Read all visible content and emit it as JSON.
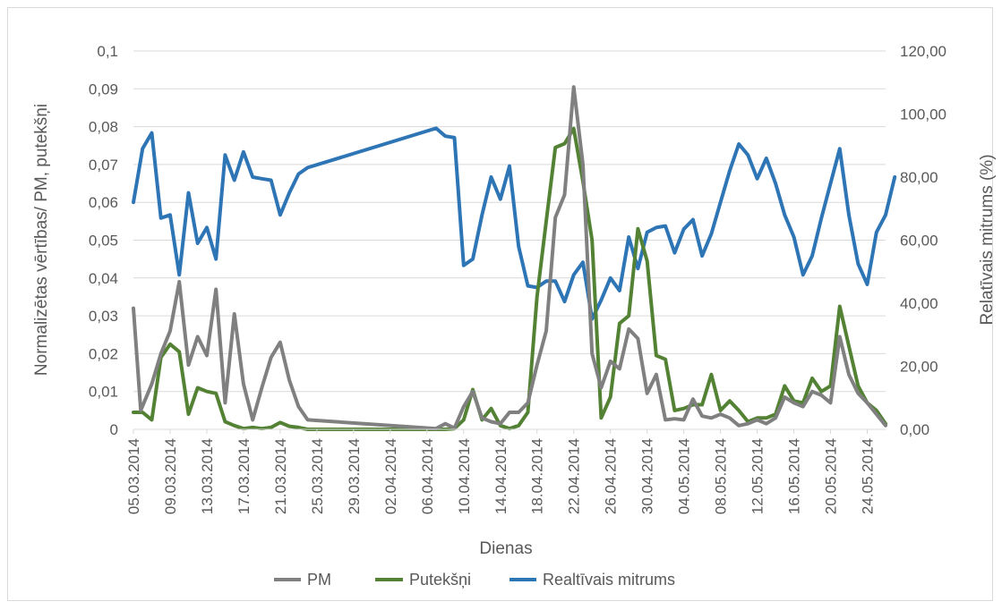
{
  "chart_data": {
    "type": "line",
    "xlabel": "Dienas",
    "ylabel_left": "Normalizētas vērtības/ PM, putekšņi",
    "ylabel_right": "Relatīvais mitrums (%)",
    "y_left_lim": [
      0,
      0.1
    ],
    "y_left_ticks": [
      "0",
      "0,01",
      "0,02",
      "0,03",
      "0,04",
      "0,05",
      "0,06",
      "0,07",
      "0,08",
      "0,09",
      "0,1"
    ],
    "y_right_lim": [
      0,
      120
    ],
    "y_right_ticks": [
      "0,00",
      "20,00",
      "40,00",
      "60,00",
      "80,00",
      "100,00",
      "120,00"
    ],
    "x_range_days": [
      0,
      82
    ],
    "x_tick_labels": [
      "05.03.2014",
      "09.03.2014",
      "13.03.2014",
      "17.03.2014",
      "21.03.2014",
      "25.03.2014",
      "29.03.2014",
      "02.04.2014",
      "06.04.2014",
      "10.04.2014",
      "14.04.2014",
      "18.04.2014",
      "22.04.2014",
      "26.04.2014",
      "30.04.2014",
      "04.05.2014",
      "08.05.2014",
      "12.05.2014",
      "16.05.2014",
      "20.05.2014",
      "24.05.2014"
    ],
    "grid": true,
    "legend_position": "bottom",
    "series": [
      {
        "name": "PM",
        "axis": "left",
        "color": "#808080",
        "points": [
          [
            0,
            0.032
          ],
          [
            0.8,
            0.005
          ],
          [
            2,
            0.012
          ],
          [
            3,
            0.02
          ],
          [
            4,
            0.026
          ],
          [
            5,
            0.039
          ],
          [
            6,
            0.017
          ],
          [
            7,
            0.0245
          ],
          [
            8,
            0.0195
          ],
          [
            9,
            0.037
          ],
          [
            10,
            0.007
          ],
          [
            11,
            0.0305
          ],
          [
            12,
            0.012
          ],
          [
            13,
            0.0025
          ],
          [
            14,
            0.011
          ],
          [
            15,
            0.019
          ],
          [
            16,
            0.023
          ],
          [
            17,
            0.013
          ],
          [
            18,
            0.006
          ],
          [
            19,
            0.0025
          ],
          [
            33,
            0.0002
          ],
          [
            34,
            0.0015
          ],
          [
            35,
            0.0003
          ],
          [
            36,
            0.006
          ],
          [
            37,
            0.01
          ],
          [
            38,
            0.003
          ],
          [
            39,
            0.002
          ],
          [
            40,
            0.0015
          ],
          [
            41,
            0.0045
          ],
          [
            42,
            0.0045
          ],
          [
            43,
            0.007
          ],
          [
            44,
            0.017
          ],
          [
            45,
            0.026
          ],
          [
            46,
            0.056
          ],
          [
            47,
            0.062
          ],
          [
            48,
            0.0905
          ],
          [
            49,
            0.07
          ],
          [
            50,
            0.02
          ],
          [
            51,
            0.011
          ],
          [
            52,
            0.018
          ],
          [
            53,
            0.016
          ],
          [
            54,
            0.0265
          ],
          [
            55,
            0.024
          ],
          [
            56,
            0.0095
          ],
          [
            57,
            0.0145
          ],
          [
            58,
            0.0025
          ],
          [
            59,
            0.0028
          ],
          [
            60,
            0.0025
          ],
          [
            61,
            0.008
          ],
          [
            62,
            0.0035
          ],
          [
            63,
            0.003
          ],
          [
            64,
            0.004
          ],
          [
            65,
            0.003
          ],
          [
            66,
            0.001
          ],
          [
            67,
            0.0015
          ],
          [
            68,
            0.0025
          ],
          [
            69,
            0.0015
          ],
          [
            70,
            0.003
          ],
          [
            71,
            0.0085
          ],
          [
            72,
            0.007
          ],
          [
            73,
            0.006
          ],
          [
            74,
            0.01
          ],
          [
            75,
            0.009
          ],
          [
            76,
            0.007
          ],
          [
            77,
            0.0245
          ],
          [
            78,
            0.0145
          ],
          [
            79,
            0.0095
          ],
          [
            80,
            0.007
          ],
          [
            81,
            0.004
          ],
          [
            82,
            0.001
          ]
        ]
      },
      {
        "name": "Putekšņi",
        "axis": "left",
        "color": "#548235",
        "points": [
          [
            0,
            0.0045
          ],
          [
            1,
            0.0045
          ],
          [
            2,
            0.0025
          ],
          [
            3,
            0.019
          ],
          [
            4,
            0.0225
          ],
          [
            5,
            0.0205
          ],
          [
            6,
            0.004
          ],
          [
            7,
            0.011
          ],
          [
            8,
            0.01
          ],
          [
            9,
            0.0095
          ],
          [
            10,
            0.002
          ],
          [
            11,
            0.001
          ],
          [
            12,
            0.0002
          ],
          [
            13,
            0.0005
          ],
          [
            14,
            0.0002
          ],
          [
            15,
            0.0005
          ],
          [
            16,
            0.0018
          ],
          [
            17,
            0.0008
          ],
          [
            18,
            0.0005
          ],
          [
            19,
            0.0
          ],
          [
            33,
            0.0
          ],
          [
            34,
            0.0
          ],
          [
            35,
            0.0002
          ],
          [
            36,
            0.0025
          ],
          [
            37,
            0.0105
          ],
          [
            38,
            0.0025
          ],
          [
            39,
            0.0055
          ],
          [
            40,
            0.001
          ],
          [
            41,
            0.0002
          ],
          [
            42,
            0.001
          ],
          [
            43,
            0.0045
          ],
          [
            44,
            0.035
          ],
          [
            45,
            0.055
          ],
          [
            46,
            0.0745
          ],
          [
            47,
            0.0755
          ],
          [
            48,
            0.0795
          ],
          [
            49,
            0.0655
          ],
          [
            50,
            0.05
          ],
          [
            51,
            0.003
          ],
          [
            52,
            0.0085
          ],
          [
            53,
            0.028
          ],
          [
            54,
            0.03
          ],
          [
            55,
            0.053
          ],
          [
            56,
            0.0445
          ],
          [
            57,
            0.0195
          ],
          [
            58,
            0.0185
          ],
          [
            59,
            0.005
          ],
          [
            60,
            0.0055
          ],
          [
            61,
            0.0065
          ],
          [
            62,
            0.0065
          ],
          [
            63,
            0.0145
          ],
          [
            64,
            0.005
          ],
          [
            65,
            0.0075
          ],
          [
            66,
            0.005
          ],
          [
            67,
            0.002
          ],
          [
            68,
            0.003
          ],
          [
            69,
            0.003
          ],
          [
            70,
            0.004
          ],
          [
            71,
            0.0115
          ],
          [
            72,
            0.0075
          ],
          [
            73,
            0.007
          ],
          [
            74,
            0.0135
          ],
          [
            75,
            0.01
          ],
          [
            76,
            0.0115
          ],
          [
            77,
            0.0325
          ],
          [
            78,
            0.022
          ],
          [
            79,
            0.0115
          ],
          [
            80,
            0.007
          ],
          [
            81,
            0.005
          ],
          [
            82,
            0.0015
          ]
        ]
      },
      {
        "name": "Realtīvais mitrums",
        "axis": "right",
        "color": "#2e75b6",
        "points": [
          [
            0,
            72
          ],
          [
            1,
            89
          ],
          [
            2,
            94
          ],
          [
            3,
            67
          ],
          [
            4,
            68
          ],
          [
            5,
            49
          ],
          [
            6,
            75
          ],
          [
            7,
            59
          ],
          [
            8,
            64
          ],
          [
            9,
            54
          ],
          [
            10,
            87
          ],
          [
            11,
            79
          ],
          [
            12,
            88
          ],
          [
            13,
            80
          ],
          [
            14,
            79.5
          ],
          [
            15,
            79
          ],
          [
            16,
            68
          ],
          [
            17,
            75
          ],
          [
            18,
            81
          ],
          [
            19,
            83
          ],
          [
            33,
            95.5
          ],
          [
            34,
            93
          ],
          [
            35,
            92.5
          ],
          [
            36,
            52
          ],
          [
            37,
            54
          ],
          [
            38,
            68
          ],
          [
            39,
            80
          ],
          [
            40,
            73
          ],
          [
            41,
            83.5
          ],
          [
            42,
            58
          ],
          [
            43,
            45.5
          ],
          [
            44,
            45
          ],
          [
            45,
            47
          ],
          [
            46,
            47
          ],
          [
            47,
            40.5
          ],
          [
            48,
            49
          ],
          [
            49,
            53
          ],
          [
            50,
            35
          ],
          [
            51,
            41
          ],
          [
            52,
            48
          ],
          [
            53,
            44
          ],
          [
            54,
            61
          ],
          [
            55,
            51
          ],
          [
            56,
            62.5
          ],
          [
            57,
            64
          ],
          [
            58,
            64.5
          ],
          [
            59,
            56
          ],
          [
            60,
            63.5
          ],
          [
            61,
            66.5
          ],
          [
            62,
            55
          ],
          [
            63,
            62
          ],
          [
            64,
            72
          ],
          [
            65,
            82
          ],
          [
            66,
            90.5
          ],
          [
            67,
            87
          ],
          [
            68,
            79.5
          ],
          [
            69,
            86
          ],
          [
            70,
            78
          ],
          [
            71,
            68
          ],
          [
            72,
            61
          ],
          [
            73,
            49
          ],
          [
            74,
            55
          ],
          [
            75,
            67
          ],
          [
            76,
            78
          ],
          [
            77,
            89
          ],
          [
            78,
            68
          ],
          [
            79,
            52.5
          ],
          [
            80,
            46
          ],
          [
            81,
            62.5
          ],
          [
            82,
            68
          ],
          [
            83,
            80
          ]
        ]
      }
    ]
  }
}
